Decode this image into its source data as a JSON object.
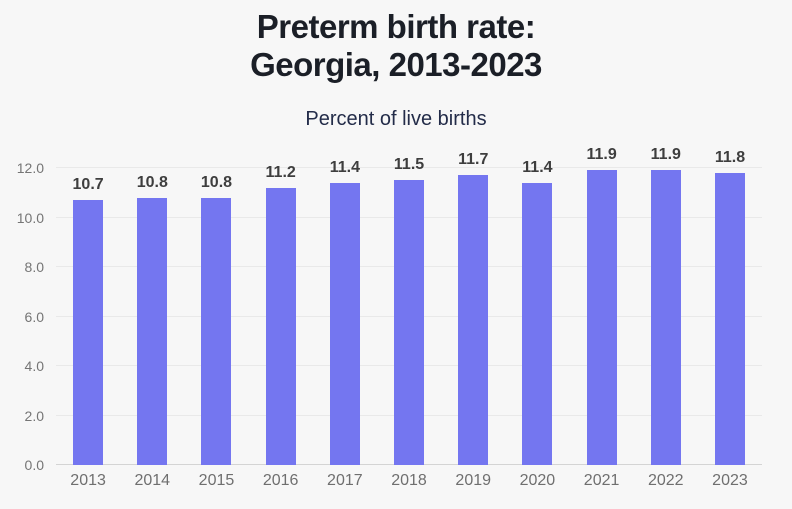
{
  "header": {
    "title_line1": "Preterm birth rate:",
    "title_line2": "Georgia, 2013-2023",
    "subtitle": "Percent of live births"
  },
  "chart_data": {
    "type": "bar",
    "title": "Preterm birth rate: Georgia, 2013-2023",
    "subtitle": "Percent of live births",
    "categories": [
      "2013",
      "2014",
      "2015",
      "2016",
      "2017",
      "2018",
      "2019",
      "2020",
      "2021",
      "2022",
      "2023"
    ],
    "values": [
      10.7,
      10.8,
      10.8,
      11.2,
      11.4,
      11.5,
      11.7,
      11.4,
      11.9,
      11.9,
      11.8
    ],
    "value_labels": [
      "10.7",
      "10.8",
      "10.8",
      "11.2",
      "11.4",
      "11.5",
      "11.7",
      "11.4",
      "11.9",
      "11.9",
      "11.8"
    ],
    "xlabel": "",
    "ylabel": "Percent of live births",
    "ylim": [
      0,
      12
    ],
    "yticks": [
      0,
      2,
      4,
      6,
      8,
      10,
      12
    ],
    "ytick_labels": [
      "0.0",
      "2.0",
      "4.0",
      "6.0",
      "8.0",
      "10.0",
      "12.0"
    ],
    "grid": true,
    "legend": false,
    "colors": {
      "bar": "#7476f0",
      "background": "#f7f7f7",
      "gridline": "#e9e9e9",
      "baseline": "#d4d4d4",
      "axis_label": "#757575",
      "value_label": "#3e3e3e",
      "title": "#1b1f27",
      "subtitle": "#232c49"
    }
  }
}
